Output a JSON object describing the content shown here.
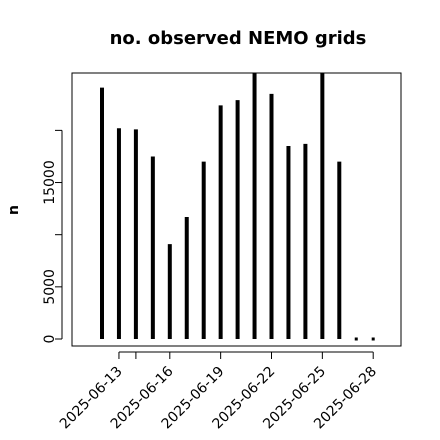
{
  "chart_data": {
    "type": "bar",
    "title": "no. observed NEMO grids",
    "ylabel": "n",
    "xlabel": "",
    "x": [
      "2025-06-12",
      "2025-06-13",
      "2025-06-14",
      "2025-06-15",
      "2025-06-16",
      "2025-06-17",
      "2025-06-18",
      "2025-06-19",
      "2025-06-20",
      "2025-06-21",
      "2025-06-22",
      "2025-06-23",
      "2025-06-24",
      "2025-06-25",
      "2025-06-26",
      "2025-06-27",
      "2025-06-28"
    ],
    "values": [
      24100,
      20200,
      20100,
      17500,
      9100,
      11700,
      17000,
      22400,
      22900,
      25500,
      23500,
      18500,
      18700,
      25500,
      17000,
      0,
      0
    ],
    "ylim": [
      0,
      25500
    ],
    "yticks": [
      0,
      5000,
      15000
    ],
    "yticks_minor": [
      10000,
      20000
    ],
    "xtick_labels": [
      "2025-06-13",
      "2025-06-16",
      "2025-06-19",
      "2025-06-22",
      "2025-06-25",
      "2025-06-28"
    ],
    "xticks_unlabeled": [
      "2025-06-14"
    ],
    "grid": false,
    "legend": "none",
    "colors": {
      "bar": "#000000",
      "frame": "#000000",
      "background": "#ffffff"
    }
  }
}
